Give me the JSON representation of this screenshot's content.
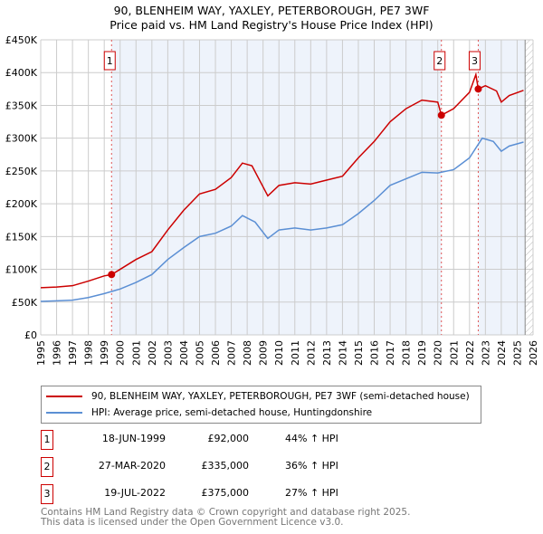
{
  "title": "90, BLENHEIM WAY, YAXLEY, PETERBOROUGH, PE7 3WF",
  "subtitle": "Price paid vs. HM Land Registry's House Price Index (HPI)",
  "colors": {
    "property": "#cc0000",
    "hpi": "#5b8fd4",
    "shade": "#eef3fb"
  },
  "chart_data": {
    "type": "line",
    "ylim": [
      0,
      450000
    ],
    "xlim": [
      1995,
      2026
    ],
    "yticks": [
      {
        "v": 0,
        "label": "£0"
      },
      {
        "v": 50000,
        "label": "£50K"
      },
      {
        "v": 100000,
        "label": "£100K"
      },
      {
        "v": 150000,
        "label": "£150K"
      },
      {
        "v": 200000,
        "label": "£200K"
      },
      {
        "v": 250000,
        "label": "£250K"
      },
      {
        "v": 300000,
        "label": "£300K"
      },
      {
        "v": 350000,
        "label": "£350K"
      },
      {
        "v": 400000,
        "label": "£400K"
      },
      {
        "v": 450000,
        "label": "£450K"
      }
    ],
    "xticks": [
      "1995",
      "1996",
      "1997",
      "1998",
      "1999",
      "2000",
      "2001",
      "2002",
      "2003",
      "2004",
      "2005",
      "2006",
      "2007",
      "2008",
      "2009",
      "2010",
      "2011",
      "2012",
      "2013",
      "2014",
      "2015",
      "2016",
      "2017",
      "2018",
      "2019",
      "2020",
      "2021",
      "2022",
      "2023",
      "2024",
      "2025",
      "2026"
    ],
    "series": [
      {
        "name": "90, BLENHEIM WAY, YAXLEY, PETERBOROUGH, PE7 3WF (semi-detached house)",
        "color": "#cc0000",
        "x": [
          1995,
          1996,
          1997,
          1998,
          1999,
          1999.46,
          2000,
          2001,
          2002,
          2003,
          2004,
          2005,
          2006,
          2007,
          2007.7,
          2008.3,
          2009.3,
          2010,
          2011,
          2012,
          2013,
          2014,
          2015,
          2016,
          2017,
          2018,
          2019,
          2020,
          2020.23,
          2021,
          2022,
          2022.4,
          2022.55,
          2023,
          2023.7,
          2024,
          2024.5,
          2025.4
        ],
        "y": [
          72000,
          73000,
          75000,
          82000,
          90000,
          92000,
          100000,
          115000,
          127000,
          160000,
          190000,
          215000,
          222000,
          240000,
          262000,
          258000,
          212000,
          228000,
          232000,
          230000,
          236000,
          242000,
          270000,
          295000,
          325000,
          345000,
          358000,
          355000,
          335000,
          345000,
          370000,
          397000,
          375000,
          380000,
          372000,
          355000,
          365000,
          373000
        ]
      },
      {
        "name": "HPI: Average price, semi-detached house, Huntingdonshire",
        "color": "#5b8fd4",
        "x": [
          1995,
          1996,
          1997,
          1998,
          1999,
          2000,
          2001,
          2002,
          2003,
          2004,
          2005,
          2006,
          2007,
          2007.7,
          2008.5,
          2009.3,
          2010,
          2011,
          2012,
          2013,
          2014,
          2015,
          2016,
          2017,
          2018,
          2019,
          2020,
          2021,
          2022,
          2022.8,
          2023.5,
          2024,
          2024.5,
          2025.4
        ],
        "y": [
          51000,
          52000,
          53000,
          57000,
          63000,
          70000,
          80000,
          92000,
          115000,
          133000,
          150000,
          155000,
          166000,
          182000,
          172000,
          147000,
          160000,
          163000,
          160000,
          163000,
          168000,
          185000,
          205000,
          228000,
          238000,
          248000,
          247000,
          252000,
          270000,
          300000,
          295000,
          280000,
          288000,
          294000
        ]
      }
    ],
    "sales": [
      {
        "id": "1",
        "x": 1999.46,
        "y": 92000,
        "date": "18-JUN-1999",
        "price": "£92,000",
        "hpi": "44% ↑ HPI"
      },
      {
        "id": "2",
        "x": 2020.23,
        "y": 335000,
        "date": "27-MAR-2020",
        "price": "£335,000",
        "hpi": "36% ↑ HPI"
      },
      {
        "id": "3",
        "x": 2022.55,
        "y": 375000,
        "date": "19-JUL-2022",
        "price": "£375,000",
        "hpi": "27% ↑ HPI"
      }
    ]
  },
  "footer": [
    "Contains HM Land Registry data © Crown copyright and database right 2025.",
    "This data is licensed under the Open Government Licence v3.0."
  ]
}
